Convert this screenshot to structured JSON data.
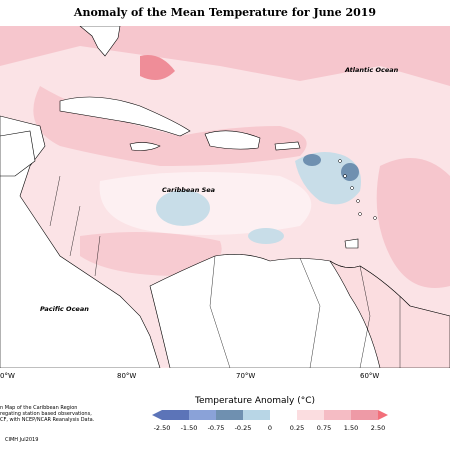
{
  "title": "Anomaly of the Mean Temperature for June 2019",
  "labels": {
    "atlantic": "Atlantic Ocean",
    "caribbean": "Caribbean Sea",
    "pacific": "Pacific Ocean"
  },
  "x_ticks": [
    "0°W",
    "80°W",
    "70°W",
    "60°W"
  ],
  "footnote_lines": [
    "n Map of the Caribbean Region",
    "regating station based observations,",
    "CF, with NCEP/NCAR Reanalysis Data."
  ],
  "credit": "CIMH Jul2019",
  "legend": {
    "title": "Temperature Anomaly (°C)",
    "ticks": [
      "-2.50",
      "-1.50",
      "-0.75",
      "-0.25",
      "0",
      "0.25",
      "0.75",
      "1.50",
      "2.50"
    ],
    "colors": [
      "#5c74b8",
      "#8aa2d8",
      "#6f90b0",
      "#b8d6e6",
      "#ffffff",
      "#fbdde0",
      "#f5bcc4",
      "#ee9aa6",
      "#f26f7a"
    ]
  }
}
